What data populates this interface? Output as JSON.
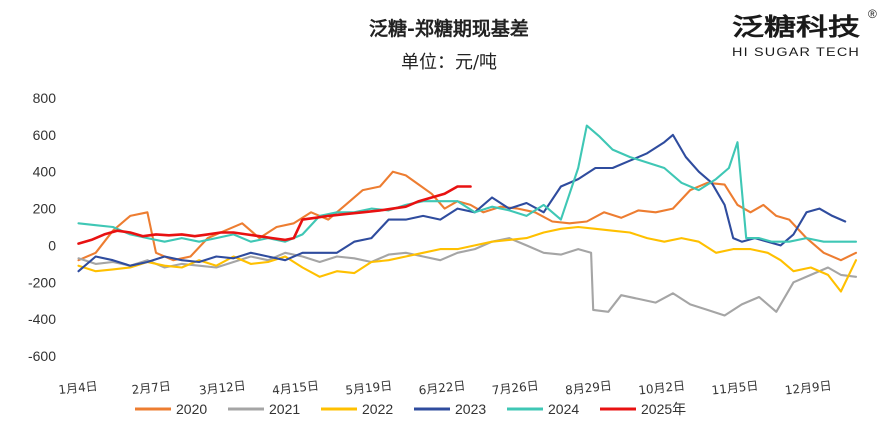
{
  "brand": {
    "name_cn": "泛糖科技",
    "name_en": "HI SUGAR TECH",
    "registered": "®"
  },
  "chart_data": {
    "type": "line",
    "title": "泛糖-郑糖期现基差",
    "subtitle": "单位：元/吨",
    "ylim": [
      -600,
      800
    ],
    "yticks": [
      800,
      600,
      400,
      200,
      0,
      -200,
      -400,
      -600
    ],
    "grid": false,
    "legend_position": "bottom",
    "x_domain": [
      1,
      365
    ],
    "x_tick_labels": [
      "1月4日",
      "2月7日",
      "3月12日",
      "4月15日",
      "5月19日",
      "6月22日",
      "7月26日",
      "8月29日",
      "10月2日",
      "11月5日",
      "12月9日"
    ],
    "x_tick_days": [
      4,
      38,
      71,
      105,
      139,
      173,
      207,
      241,
      275,
      309,
      343
    ],
    "series": [
      {
        "name": "2020",
        "color": "#ED7D31",
        "points": [
          [
            4,
            -80
          ],
          [
            12,
            -40
          ],
          [
            20,
            80
          ],
          [
            28,
            160
          ],
          [
            36,
            180
          ],
          [
            40,
            -40
          ],
          [
            48,
            -80
          ],
          [
            56,
            -60
          ],
          [
            64,
            40
          ],
          [
            72,
            80
          ],
          [
            80,
            120
          ],
          [
            88,
            40
          ],
          [
            96,
            100
          ],
          [
            104,
            120
          ],
          [
            112,
            180
          ],
          [
            120,
            140
          ],
          [
            128,
            220
          ],
          [
            136,
            300
          ],
          [
            144,
            320
          ],
          [
            150,
            400
          ],
          [
            156,
            380
          ],
          [
            162,
            330
          ],
          [
            168,
            280
          ],
          [
            174,
            200
          ],
          [
            180,
            240
          ],
          [
            186,
            220
          ],
          [
            192,
            180
          ],
          [
            200,
            210
          ],
          [
            208,
            200
          ],
          [
            216,
            180
          ],
          [
            224,
            130
          ],
          [
            232,
            120
          ],
          [
            240,
            130
          ],
          [
            248,
            180
          ],
          [
            256,
            150
          ],
          [
            264,
            190
          ],
          [
            272,
            180
          ],
          [
            280,
            200
          ],
          [
            288,
            300
          ],
          [
            296,
            340
          ],
          [
            304,
            330
          ],
          [
            310,
            220
          ],
          [
            316,
            180
          ],
          [
            322,
            220
          ],
          [
            328,
            160
          ],
          [
            334,
            140
          ],
          [
            342,
            40
          ],
          [
            350,
            -40
          ],
          [
            358,
            -80
          ],
          [
            365,
            -40
          ]
        ]
      },
      {
        "name": "2021",
        "color": "#A5A5A5",
        "points": [
          [
            4,
            -70
          ],
          [
            12,
            -100
          ],
          [
            20,
            -90
          ],
          [
            28,
            -110
          ],
          [
            36,
            -80
          ],
          [
            44,
            -120
          ],
          [
            52,
            -100
          ],
          [
            60,
            -110
          ],
          [
            68,
            -120
          ],
          [
            76,
            -90
          ],
          [
            84,
            -60
          ],
          [
            92,
            -80
          ],
          [
            100,
            -40
          ],
          [
            108,
            -60
          ],
          [
            116,
            -90
          ],
          [
            124,
            -60
          ],
          [
            132,
            -70
          ],
          [
            140,
            -90
          ],
          [
            148,
            -50
          ],
          [
            156,
            -40
          ],
          [
            164,
            -60
          ],
          [
            172,
            -80
          ],
          [
            180,
            -40
          ],
          [
            188,
            -20
          ],
          [
            196,
            20
          ],
          [
            204,
            40
          ],
          [
            212,
            0
          ],
          [
            220,
            -40
          ],
          [
            228,
            -50
          ],
          [
            236,
            -20
          ],
          [
            242,
            -40
          ],
          [
            243,
            -350
          ],
          [
            250,
            -360
          ],
          [
            256,
            -270
          ],
          [
            264,
            -290
          ],
          [
            272,
            -310
          ],
          [
            280,
            -260
          ],
          [
            288,
            -320
          ],
          [
            296,
            -350
          ],
          [
            304,
            -380
          ],
          [
            312,
            -320
          ],
          [
            320,
            -280
          ],
          [
            328,
            -360
          ],
          [
            336,
            -200
          ],
          [
            344,
            -160
          ],
          [
            352,
            -120
          ],
          [
            358,
            -160
          ],
          [
            365,
            -170
          ]
        ]
      },
      {
        "name": "2022",
        "color": "#FFC000",
        "points": [
          [
            4,
            -110
          ],
          [
            12,
            -140
          ],
          [
            20,
            -130
          ],
          [
            28,
            -120
          ],
          [
            36,
            -90
          ],
          [
            44,
            -110
          ],
          [
            52,
            -120
          ],
          [
            60,
            -80
          ],
          [
            68,
            -110
          ],
          [
            76,
            -60
          ],
          [
            84,
            -100
          ],
          [
            92,
            -90
          ],
          [
            100,
            -60
          ],
          [
            108,
            -120
          ],
          [
            116,
            -170
          ],
          [
            124,
            -140
          ],
          [
            132,
            -150
          ],
          [
            140,
            -90
          ],
          [
            148,
            -80
          ],
          [
            156,
            -60
          ],
          [
            164,
            -40
          ],
          [
            172,
            -20
          ],
          [
            180,
            -20
          ],
          [
            188,
            0
          ],
          [
            196,
            20
          ],
          [
            204,
            30
          ],
          [
            212,
            40
          ],
          [
            220,
            70
          ],
          [
            228,
            90
          ],
          [
            236,
            100
          ],
          [
            244,
            90
          ],
          [
            252,
            80
          ],
          [
            260,
            70
          ],
          [
            268,
            40
          ],
          [
            276,
            20
          ],
          [
            284,
            40
          ],
          [
            292,
            20
          ],
          [
            300,
            -40
          ],
          [
            308,
            -20
          ],
          [
            316,
            -20
          ],
          [
            324,
            -40
          ],
          [
            330,
            -80
          ],
          [
            336,
            -140
          ],
          [
            344,
            -120
          ],
          [
            352,
            -160
          ],
          [
            358,
            -250
          ],
          [
            365,
            -80
          ]
        ]
      },
      {
        "name": "2023",
        "color": "#2F4C9E",
        "points": [
          [
            4,
            -140
          ],
          [
            12,
            -60
          ],
          [
            20,
            -80
          ],
          [
            28,
            -110
          ],
          [
            36,
            -90
          ],
          [
            44,
            -60
          ],
          [
            52,
            -80
          ],
          [
            60,
            -90
          ],
          [
            68,
            -60
          ],
          [
            76,
            -70
          ],
          [
            84,
            -40
          ],
          [
            92,
            -60
          ],
          [
            100,
            -80
          ],
          [
            108,
            -40
          ],
          [
            116,
            -40
          ],
          [
            124,
            -40
          ],
          [
            132,
            20
          ],
          [
            140,
            40
          ],
          [
            148,
            140
          ],
          [
            156,
            140
          ],
          [
            164,
            160
          ],
          [
            172,
            140
          ],
          [
            180,
            200
          ],
          [
            188,
            180
          ],
          [
            196,
            260
          ],
          [
            204,
            200
          ],
          [
            212,
            230
          ],
          [
            220,
            180
          ],
          [
            228,
            320
          ],
          [
            236,
            360
          ],
          [
            244,
            420
          ],
          [
            252,
            420
          ],
          [
            260,
            460
          ],
          [
            268,
            500
          ],
          [
            276,
            560
          ],
          [
            280,
            600
          ],
          [
            286,
            480
          ],
          [
            292,
            400
          ],
          [
            298,
            340
          ],
          [
            304,
            220
          ],
          [
            308,
            40
          ],
          [
            312,
            20
          ],
          [
            318,
            40
          ],
          [
            324,
            20
          ],
          [
            330,
            0
          ],
          [
            336,
            60
          ],
          [
            342,
            180
          ],
          [
            348,
            200
          ],
          [
            354,
            160
          ],
          [
            360,
            130
          ]
        ]
      },
      {
        "name": "2024",
        "color": "#3FC7B5",
        "points": [
          [
            4,
            120
          ],
          [
            12,
            110
          ],
          [
            20,
            100
          ],
          [
            28,
            60
          ],
          [
            36,
            40
          ],
          [
            44,
            20
          ],
          [
            52,
            40
          ],
          [
            60,
            20
          ],
          [
            68,
            40
          ],
          [
            76,
            60
          ],
          [
            84,
            20
          ],
          [
            92,
            40
          ],
          [
            100,
            20
          ],
          [
            108,
            60
          ],
          [
            116,
            160
          ],
          [
            124,
            180
          ],
          [
            132,
            180
          ],
          [
            140,
            200
          ],
          [
            148,
            190
          ],
          [
            156,
            220
          ],
          [
            164,
            240
          ],
          [
            172,
            240
          ],
          [
            180,
            240
          ],
          [
            188,
            180
          ],
          [
            196,
            210
          ],
          [
            204,
            190
          ],
          [
            212,
            160
          ],
          [
            220,
            220
          ],
          [
            228,
            140
          ],
          [
            236,
            420
          ],
          [
            240,
            650
          ],
          [
            246,
            590
          ],
          [
            252,
            520
          ],
          [
            260,
            480
          ],
          [
            268,
            450
          ],
          [
            276,
            420
          ],
          [
            284,
            340
          ],
          [
            292,
            300
          ],
          [
            300,
            360
          ],
          [
            306,
            420
          ],
          [
            310,
            560
          ],
          [
            314,
            40
          ],
          [
            320,
            40
          ],
          [
            326,
            20
          ],
          [
            334,
            20
          ],
          [
            342,
            40
          ],
          [
            350,
            20
          ],
          [
            358,
            20
          ],
          [
            365,
            20
          ]
        ]
      },
      {
        "name": "2025年",
        "color": "#E81111",
        "points": [
          [
            4,
            10
          ],
          [
            10,
            30
          ],
          [
            16,
            60
          ],
          [
            22,
            80
          ],
          [
            28,
            70
          ],
          [
            34,
            50
          ],
          [
            40,
            60
          ],
          [
            46,
            55
          ],
          [
            52,
            60
          ],
          [
            58,
            50
          ],
          [
            64,
            60
          ],
          [
            70,
            70
          ],
          [
            76,
            70
          ],
          [
            82,
            60
          ],
          [
            88,
            50
          ],
          [
            94,
            40
          ],
          [
            100,
            30
          ],
          [
            104,
            40
          ],
          [
            108,
            140
          ],
          [
            114,
            150
          ],
          [
            120,
            160
          ],
          [
            128,
            170
          ],
          [
            136,
            180
          ],
          [
            144,
            190
          ],
          [
            150,
            200
          ],
          [
            156,
            210
          ],
          [
            162,
            240
          ],
          [
            168,
            260
          ],
          [
            174,
            280
          ],
          [
            180,
            320
          ],
          [
            186,
            320
          ]
        ]
      }
    ]
  }
}
